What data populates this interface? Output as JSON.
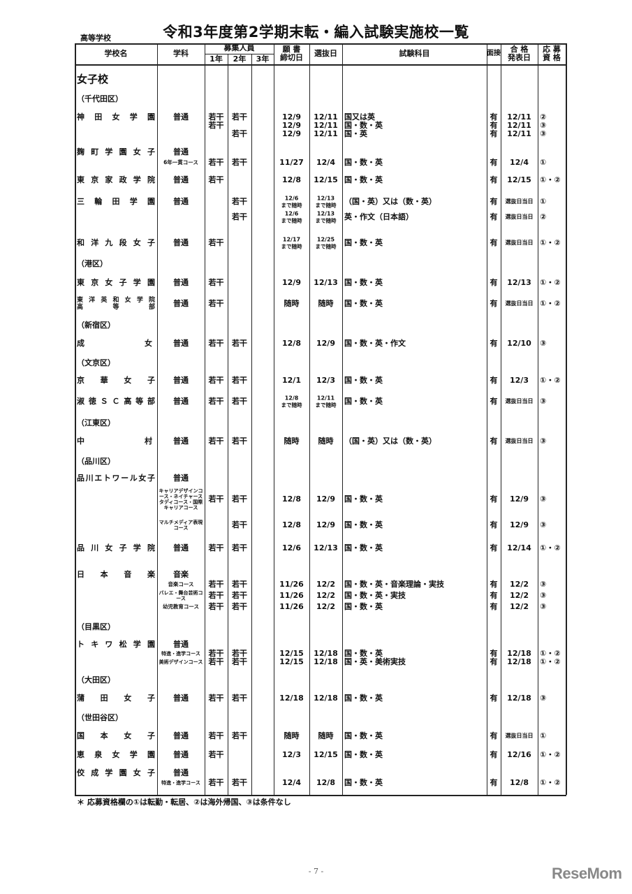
{
  "page": {
    "title": "令和3年度第2学期末転・編入試験実施校一覧",
    "subtitle": "高等学校",
    "footnote": "＊ 応募資格欄の①は転勤・転居、②は海外帰国、③は条件なし",
    "page_number": "- 7 -",
    "logo": "ReseMom"
  },
  "header": {
    "school": "学校名",
    "dept": "学科",
    "recruit": "募集人員",
    "g1": "1年",
    "g2": "2年",
    "g3": "3年",
    "deadline_1": "願 書",
    "deadline_2": "締切日",
    "selection": "選抜日",
    "subjects": "試験科目",
    "interview": "面接",
    "announce_1": "合 格",
    "announce_2": "発表日",
    "elig_1": "応 募",
    "elig_2": "資 格"
  },
  "rows": [
    {
      "kind": "category",
      "text": "女子校"
    },
    {
      "kind": "ward",
      "text": "（千代田区）"
    },
    {
      "school": "神田女学園",
      "dept": "普通",
      "g1": "若干",
      "g2": "若干",
      "deadline": "12/9",
      "sel": "12/11",
      "subj": "国又は英",
      "intv": "有",
      "ann": "12/11",
      "elig": "②"
    },
    {
      "g1": "若干",
      "deadline": "12/9",
      "sel": "12/11",
      "subj": "国・数・英",
      "intv": "有",
      "ann": "12/11",
      "elig": "③"
    },
    {
      "g2": "若干",
      "deadline": "12/9",
      "sel": "12/11",
      "subj": "国・英",
      "intv": "有",
      "ann": "12/11",
      "elig": "③"
    },
    {
      "school": "麹町学園女子",
      "dept": "普通"
    },
    {
      "course": "6年一貫コース",
      "g1": "若干",
      "g2": "若干",
      "deadline": "11/27",
      "sel": "12/4",
      "subj": "国・数・英",
      "intv": "有",
      "ann": "12/4",
      "elig": "①"
    },
    {
      "school": "東京家政学院",
      "dept": "普通",
      "g1": "若干",
      "deadline": "12/8",
      "sel": "12/15",
      "subj": "国・数・英",
      "intv": "有",
      "ann": "12/15",
      "elig": "①・②"
    },
    {
      "school": "三輪田学園",
      "dept": "普通",
      "g2": "若干",
      "deadline": "12/6",
      "deadline_note": "まで随時",
      "sel": "12/13",
      "sel_note": "まで随時",
      "subj": "（国・英）又は（数・英）",
      "intv": "有",
      "ann_small": "選抜日当日",
      "elig": "①"
    },
    {
      "g2": "若干",
      "deadline": "12/6",
      "deadline_note": "まで随時",
      "sel": "12/13",
      "sel_note": "まで随時",
      "subj": "英・作文（日本語）",
      "intv": "有",
      "ann_small": "選抜日当日",
      "elig": "②"
    },
    {
      "school": "和洋九段女子",
      "dept": "普通",
      "g1": "若干",
      "deadline": "12/17",
      "deadline_note": "まで随時",
      "sel": "12/25",
      "sel_note": "まで随時",
      "subj": "国・数・英",
      "intv": "有",
      "ann_small": "選抜日当日",
      "elig": "①・②"
    },
    {
      "kind": "ward",
      "text": "（港区）"
    },
    {
      "school": "東京女子学園",
      "dept": "普通",
      "g1": "若干",
      "deadline": "12/9",
      "sel": "12/13",
      "subj": "国・数・英",
      "intv": "有",
      "ann": "12/13",
      "elig": "①・②"
    },
    {
      "school": "東洋英和女学院",
      "school2": "高等部",
      "dept": "普通",
      "g1": "若干",
      "deadline": "随時",
      "sel": "随時",
      "subj": "国・数・英",
      "intv": "有",
      "ann_small": "選抜日当日",
      "elig": "①・②"
    },
    {
      "kind": "ward",
      "text": "（新宿区）"
    },
    {
      "school": "成女",
      "dept": "普通",
      "g1": "若干",
      "g2": "若干",
      "deadline": "12/8",
      "sel": "12/9",
      "subj": "国・数・英・作文",
      "intv": "有",
      "ann": "12/10",
      "elig": "③"
    },
    {
      "kind": "ward",
      "text": "（文京区）"
    },
    {
      "school": "京華女子",
      "dept": "普通",
      "g1": "若干",
      "g2": "若干",
      "deadline": "12/1",
      "sel": "12/3",
      "subj": "国・数・英",
      "intv": "有",
      "ann": "12/3",
      "elig": "①・②"
    },
    {
      "school": "淑徳ＳＣ高等部",
      "dept": "普通",
      "g1": "若干",
      "g2": "若干",
      "deadline": "12/8",
      "deadline_note": "まで随時",
      "sel": "12/11",
      "sel_note": "まで随時",
      "subj": "国・数・英",
      "intv": "有",
      "ann_small": "選抜日当日",
      "elig": "③"
    },
    {
      "kind": "ward",
      "text": "（江東区）"
    },
    {
      "school": "中村",
      "dept": "普通",
      "g1": "若干",
      "g2": "若干",
      "deadline": "随時",
      "sel": "随時",
      "subj": "（国・英）又は（数・英）",
      "intv": "有",
      "ann_small": "選抜日当日",
      "elig": "③"
    },
    {
      "kind": "ward",
      "text": "（品川区）"
    },
    {
      "school": "品川エトワール女子",
      "dept": "普通"
    },
    {
      "course": "キャリアデザインコース・ネイチャースタディコース・国際キャリアコース",
      "g1": "若干",
      "g2": "若干",
      "deadline": "12/8",
      "sel": "12/9",
      "subj": "国・数・英",
      "intv": "有",
      "ann": "12/9",
      "elig": "③"
    },
    {
      "course": "マルチメディア表現コース",
      "g2": "若干",
      "deadline": "12/8",
      "sel": "12/9",
      "subj": "国・数・英",
      "intv": "有",
      "ann": "12/9",
      "elig": "③"
    },
    {
      "school": "品川女子学院",
      "dept": "普通",
      "g1": "若干",
      "g2": "若干",
      "deadline": "12/6",
      "sel": "12/13",
      "subj": "国・数・英",
      "intv": "有",
      "ann": "12/14",
      "elig": "①・②"
    },
    {
      "school": "日本音楽",
      "dept": "音楽"
    },
    {
      "course": "音楽コース",
      "g1": "若干",
      "g2": "若干",
      "deadline": "11/26",
      "sel": "12/2",
      "subj": "国・数・英・音楽理論・実技",
      "intv": "有",
      "ann": "12/2",
      "elig": "③"
    },
    {
      "course": "バレエ・舞台芸術コース",
      "g1": "若干",
      "g2": "若干",
      "deadline": "11/26",
      "sel": "12/2",
      "subj": "国・数・英・実技",
      "intv": "有",
      "ann": "12/2",
      "elig": "③"
    },
    {
      "course": "幼児教育コース",
      "g1": "若干",
      "g2": "若干",
      "deadline": "11/26",
      "sel": "12/2",
      "subj": "国・数・英",
      "intv": "有",
      "ann": "12/2",
      "elig": "③"
    },
    {
      "kind": "ward",
      "text": "（目黒区）"
    },
    {
      "school": "トキワ松学園",
      "dept": "普通"
    },
    {
      "course": "特進・進学コース",
      "g1": "若干",
      "g2": "若干",
      "deadline": "12/15",
      "sel": "12/18",
      "subj": "国・数・英",
      "intv": "有",
      "ann": "12/18",
      "elig": "①・②"
    },
    {
      "course": "美術デザインコース",
      "g1": "若干",
      "g2": "若干",
      "deadline": "12/15",
      "sel": "12/18",
      "subj": "国・英・美術実技",
      "intv": "有",
      "ann": "12/18",
      "elig": "①・②"
    },
    {
      "kind": "ward",
      "text": "（大田区）"
    },
    {
      "school": "蒲田女子",
      "dept": "普通",
      "g1": "若干",
      "g2": "若干",
      "deadline": "12/18",
      "sel": "12/18",
      "subj": "国・数・英",
      "intv": "有",
      "ann": "12/18",
      "elig": "③"
    },
    {
      "kind": "ward",
      "text": "（世田谷区）"
    },
    {
      "school": "国本女子",
      "dept": "普通",
      "g1": "若干",
      "g2": "若干",
      "deadline": "随時",
      "sel": "随時",
      "subj": "国・数・英",
      "intv": "有",
      "ann_small": "選抜日当日",
      "elig": "①"
    },
    {
      "school": "恵泉女学園",
      "dept": "普通",
      "g1": "若干",
      "deadline": "12/3",
      "sel": "12/15",
      "subj": "国・数・英",
      "intv": "有",
      "ann": "12/16",
      "elig": "①・②"
    },
    {
      "school": "佼成学園女子",
      "dept": "普通"
    },
    {
      "course": "特進・進学コース",
      "g1": "若干",
      "g2": "若干",
      "deadline": "12/4",
      "sel": "12/8",
      "subj": "国・数・英",
      "intv": "有",
      "ann": "12/8",
      "elig": "①・②"
    }
  ]
}
